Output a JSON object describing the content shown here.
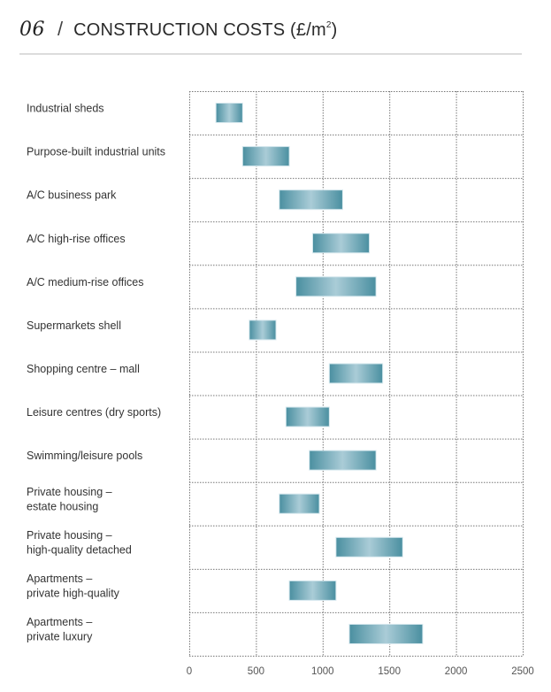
{
  "header": {
    "section_number": "06",
    "separator": "/",
    "title": "CONSTRUCTION COSTS (£/m",
    "title_superscript": "2",
    "title_suffix": ")"
  },
  "chart_data": {
    "type": "bar",
    "orientation": "horizontal-range",
    "title": "CONSTRUCTION COSTS (£/m²)",
    "xlabel": "",
    "ylabel": "",
    "xlim": [
      0,
      2500
    ],
    "xticks": [
      0,
      500,
      1000,
      1500,
      2000,
      2500
    ],
    "xtick_labels": [
      "0",
      "500",
      "1000",
      "1500",
      "2000",
      "2500"
    ],
    "grid": true,
    "legend": "none",
    "bar_color_edge": "#4a8fa0",
    "bar_color_center": "#aaccd7",
    "categories": [
      [
        "Industrial sheds"
      ],
      [
        "Purpose-built industrial units"
      ],
      [
        "A/C business park"
      ],
      [
        "A/C high-rise offices"
      ],
      [
        "A/C medium-rise offices"
      ],
      [
        "Supermarkets shell"
      ],
      [
        "Shopping centre – mall"
      ],
      [
        "Leisure centres (dry sports)"
      ],
      [
        "Swimming/leisure pools"
      ],
      [
        "Private housing –",
        "estate housing"
      ],
      [
        "Private housing –",
        "high-quality detached"
      ],
      [
        "Apartments –",
        "private high-quality"
      ],
      [
        "Apartments –",
        "private luxury"
      ]
    ],
    "series": [
      {
        "name": "Cost range (£/m²)",
        "low": [
          200,
          400,
          675,
          925,
          800,
          450,
          1050,
          725,
          900,
          675,
          1100,
          750,
          1200
        ],
        "high": [
          400,
          750,
          1150,
          1350,
          1400,
          650,
          1450,
          1050,
          1400,
          975,
          1600,
          1100,
          1750
        ]
      }
    ]
  }
}
